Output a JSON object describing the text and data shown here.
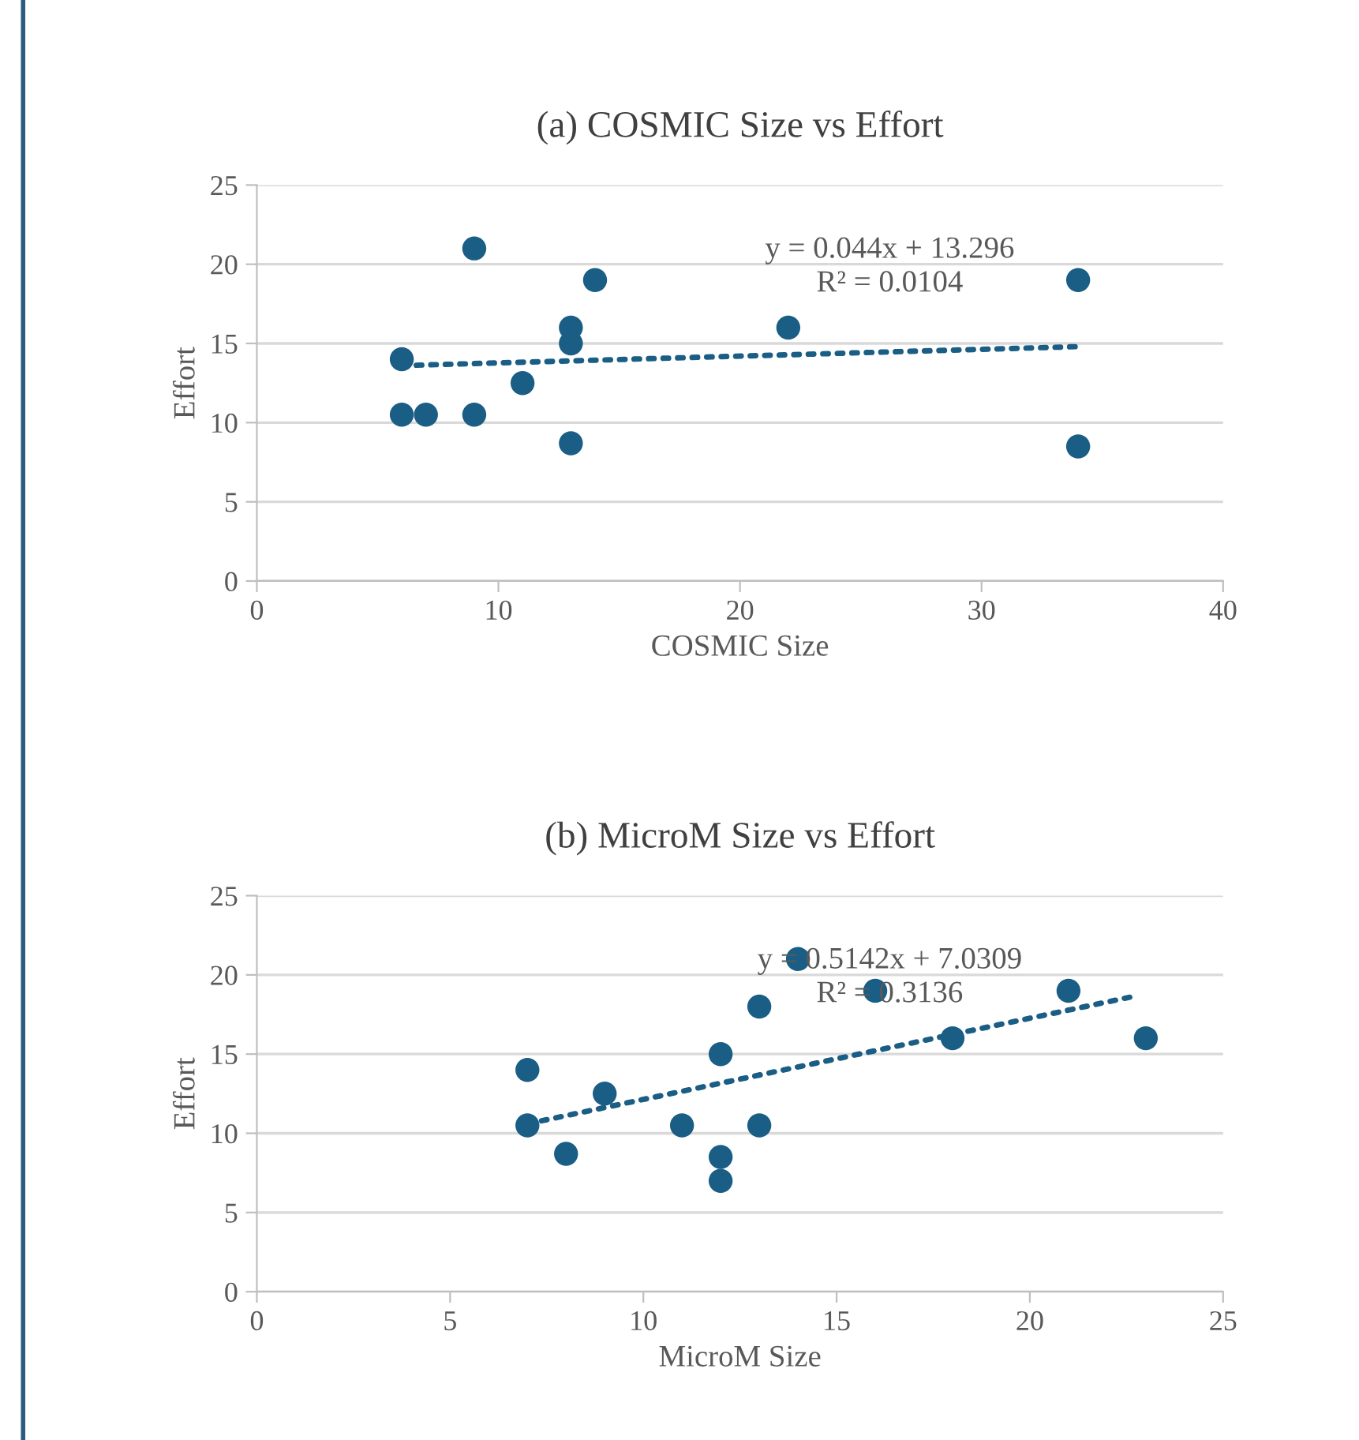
{
  "chart_data": [
    {
      "type": "scatter",
      "title": "(a) COSMIC Size vs Effort",
      "xlabel": "COSMIC Size",
      "ylabel": "Effort",
      "series": [
        {
          "color": "#1a5e85",
          "x": [
            6,
            6,
            7,
            9,
            9,
            11,
            13,
            13,
            13,
            14,
            22,
            34,
            34
          ],
          "values": [
            14,
            10.5,
            10.5,
            10.5,
            21,
            12.5,
            16,
            15,
            8.7,
            19,
            16,
            19,
            8.5
          ],
          "marker": "circle"
        },
        {
          "type": "line",
          "color": "#1a5e85",
          "x": [
            6,
            34
          ],
          "values": [
            13.6,
            14.8
          ],
          "line_style": "dotted",
          "marker": "none"
        }
      ],
      "annotations": [
        "y = 0.044x + 13.296",
        "R² = 0.0104"
      ],
      "xlim": [
        0,
        40
      ],
      "xticks": [
        0,
        10,
        20,
        30,
        40
      ],
      "ylim": [
        0,
        25
      ],
      "yticks": [
        0,
        5,
        10,
        15,
        20,
        25
      ],
      "grid": "y",
      "legend": false
    },
    {
      "type": "scatter",
      "title": "(b) MicroM Size vs Effort",
      "xlabel": "MicroM Size",
      "ylabel": "Effort",
      "series": [
        {
          "color": "#1a5e85",
          "x": [
            7,
            7,
            8,
            9,
            11,
            12,
            12,
            12,
            13,
            13,
            14,
            16,
            18,
            21,
            23
          ],
          "values": [
            14,
            10.5,
            8.7,
            12.5,
            10.5,
            15,
            8.5,
            7,
            18,
            10.5,
            21,
            19,
            16,
            19,
            16
          ],
          "marker": "circle"
        },
        {
          "type": "line",
          "color": "#1a5e85",
          "x": [
            7,
            22.8
          ],
          "values": [
            10.6,
            18.7
          ],
          "line_style": "dotted",
          "marker": "none"
        }
      ],
      "annotations": [
        "y = 0.5142x + 7.0309",
        "R² = 0.3136"
      ],
      "xlim": [
        0,
        25
      ],
      "xticks": [
        0,
        5,
        10,
        15,
        20,
        25
      ],
      "ylim": [
        0,
        25
      ],
      "yticks": [
        0,
        5,
        10,
        15,
        20,
        25
      ],
      "grid": "y",
      "legend": false
    }
  ]
}
